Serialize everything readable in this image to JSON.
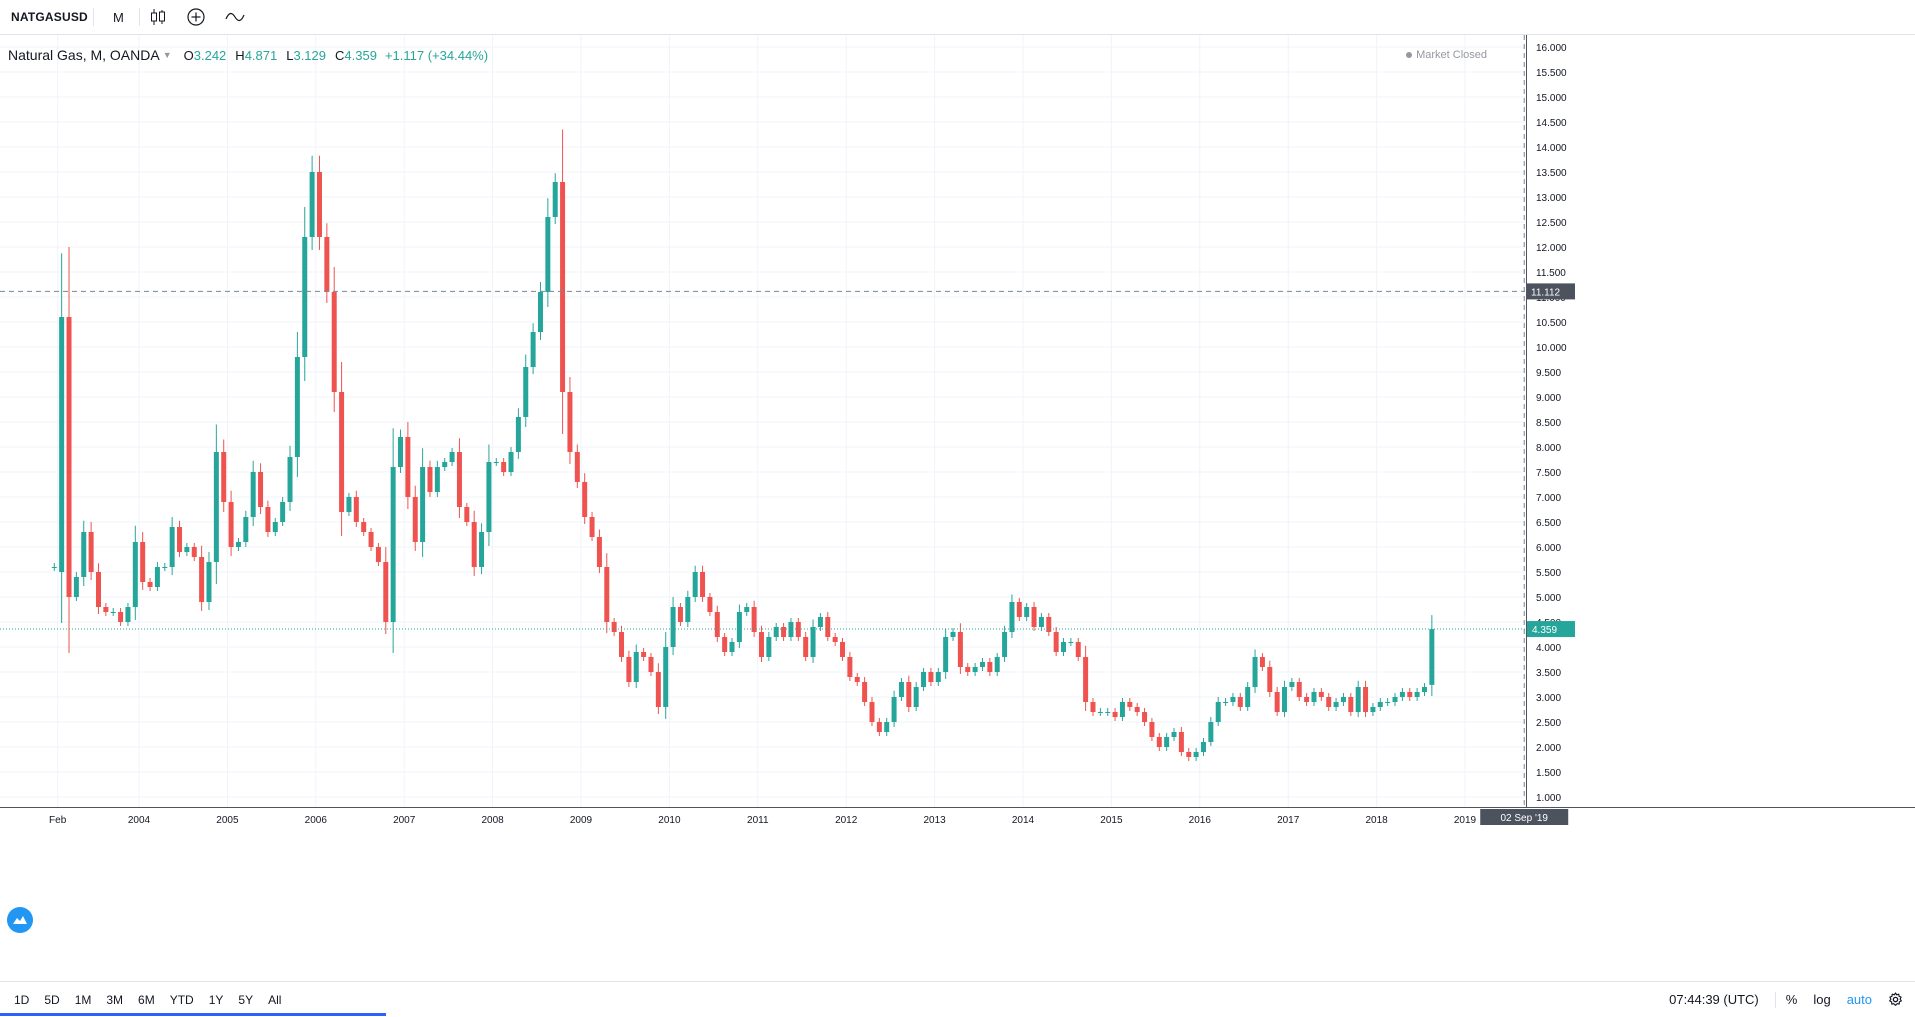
{
  "toolbar": {
    "symbol": "NATGASUSD",
    "interval": "M",
    "icons": [
      "candles-icon",
      "compare-add-icon",
      "indicators-icon"
    ]
  },
  "legend": {
    "title": "Natural Gas, M, OANDA",
    "o_label": "O",
    "o_value": "3.242",
    "h_label": "H",
    "h_value": "4.871",
    "l_label": "L",
    "l_value": "3.129",
    "c_label": "C",
    "c_value": "4.359",
    "change": "+1.117 (+34.44%)"
  },
  "market_status": "Market Closed",
  "bottom_bar": {
    "ranges": [
      "1D",
      "5D",
      "1M",
      "3M",
      "6M",
      "YTD",
      "1Y",
      "5Y",
      "All"
    ],
    "clock": "07:44:39 (UTC)",
    "percent_label": "%",
    "log_label": "log",
    "auto_label": "auto"
  },
  "colors": {
    "up": "#26a69a",
    "down": "#ef5350",
    "grid": "#f0f3fa",
    "axis_text": "#131722",
    "crosshair": "#758696"
  },
  "chart_data": {
    "type": "candlestick",
    "title": "Natural Gas, M, OANDA",
    "symbol": "NATGASUSD",
    "timeframe": "monthly",
    "ylim": [
      0.75,
      16.4
    ],
    "y_ticks": [
      "1.000",
      "1.500",
      "2.000",
      "2.500",
      "3.000",
      "3.500",
      "4.000",
      "4.500",
      "5.000",
      "5.500",
      "6.000",
      "6.500",
      "7.000",
      "7.500",
      "8.000",
      "8.500",
      "9.000",
      "9.500",
      "10.000",
      "10.500",
      "11.000",
      "11.500",
      "12.000",
      "12.500",
      "13.000",
      "13.500",
      "14.000",
      "14.500",
      "15.000",
      "15.500",
      "16.000"
    ],
    "x_labels": [
      "Feb",
      "2004",
      "2005",
      "2006",
      "2007",
      "2008",
      "2009",
      "2010",
      "2011",
      "2012",
      "2013",
      "2014",
      "2015",
      "2016",
      "2017",
      "2018",
      "2019"
    ],
    "x_label_start": 2003.08,
    "start": 2003.0,
    "last_price": "4.359",
    "crosshair_price": "11.112",
    "crosshair_date": "02 Sep '19",
    "crosshair_price_value": 11.112,
    "crosshair_time": 2019.67,
    "closes": [
      5.6,
      10.6,
      5.0,
      5.4,
      6.3,
      5.5,
      4.8,
      4.7,
      4.7,
      4.5,
      4.8,
      6.1,
      5.3,
      5.2,
      5.6,
      5.6,
      6.4,
      5.9,
      6.0,
      5.8,
      4.9,
      5.7,
      7.9,
      6.9,
      6.0,
      6.1,
      6.6,
      7.5,
      6.8,
      6.3,
      6.5,
      6.9,
      7.8,
      9.8,
      12.2,
      13.5,
      12.2,
      11.1,
      9.1,
      6.7,
      7.0,
      6.5,
      6.3,
      6.0,
      5.7,
      4.5,
      7.6,
      8.2,
      7.0,
      6.1,
      7.6,
      7.1,
      7.6,
      7.7,
      7.9,
      6.8,
      6.5,
      5.6,
      6.3,
      7.7,
      7.7,
      7.5,
      7.9,
      8.6,
      9.6,
      10.3,
      11.1,
      12.6,
      13.3,
      9.1,
      7.9,
      7.3,
      6.6,
      6.2,
      5.6,
      4.5,
      4.3,
      3.8,
      3.3,
      3.9,
      3.8,
      3.5,
      2.8,
      4.0,
      4.8,
      4.5,
      5.0,
      5.5,
      5.0,
      4.7,
      4.2,
      3.9,
      4.1,
      4.7,
      4.8,
      4.3,
      3.8,
      4.2,
      4.4,
      4.2,
      4.5,
      4.2,
      3.8,
      4.4,
      4.6,
      4.2,
      4.1,
      3.8,
      3.4,
      3.3,
      2.9,
      2.5,
      2.3,
      2.5,
      3.0,
      3.3,
      2.8,
      3.2,
      3.5,
      3.3,
      3.5,
      4.2,
      4.3,
      3.6,
      3.5,
      3.6,
      3.7,
      3.5,
      3.8,
      4.3,
      4.9,
      4.6,
      4.8,
      4.4,
      4.6,
      4.3,
      3.9,
      4.1,
      4.1,
      3.8,
      2.9,
      2.7,
      2.7,
      2.7,
      2.6,
      2.9,
      2.8,
      2.7,
      2.5,
      2.2,
      2.0,
      2.2,
      2.3,
      1.9,
      1.8,
      1.9,
      2.1,
      2.5,
      2.9,
      2.9,
      3.0,
      2.8,
      3.2,
      3.8,
      3.6,
      3.1,
      2.7,
      3.2,
      3.3,
      3.0,
      2.9,
      3.1,
      3.0,
      2.8,
      2.9,
      3.0,
      2.7,
      3.2,
      2.7,
      2.8,
      2.9,
      2.9,
      3.0,
      3.1,
      3.0,
      3.1,
      3.2,
      4.359
    ],
    "opens": [
      5.6,
      5.5,
      10.6,
      5.0,
      5.4,
      6.3,
      5.5,
      4.8,
      4.7,
      4.7,
      4.5,
      4.8,
      6.1,
      5.3,
      5.2,
      5.6,
      5.6,
      6.4,
      5.9,
      6.0,
      5.8,
      4.9,
      5.7,
      7.9,
      6.9,
      6.0,
      6.1,
      6.6,
      7.5,
      6.8,
      6.3,
      6.5,
      6.9,
      7.8,
      9.8,
      12.2,
      13.5,
      12.2,
      11.1,
      9.1,
      6.7,
      7.0,
      6.5,
      6.3,
      6.0,
      5.7,
      4.5,
      7.6,
      8.2,
      7.0,
      6.1,
      7.6,
      7.1,
      7.6,
      7.7,
      7.9,
      6.8,
      6.5,
      5.6,
      6.3,
      7.7,
      7.7,
      7.5,
      7.9,
      8.6,
      9.6,
      10.3,
      11.1,
      12.6,
      13.3,
      9.1,
      7.9,
      7.3,
      6.6,
      6.2,
      5.6,
      4.5,
      4.3,
      3.8,
      3.3,
      3.9,
      3.8,
      3.5,
      2.8,
      4.0,
      4.8,
      4.5,
      5.0,
      5.5,
      5.0,
      4.7,
      4.2,
      3.9,
      4.1,
      4.7,
      4.8,
      4.3,
      3.8,
      4.2,
      4.4,
      4.2,
      4.5,
      4.2,
      3.8,
      4.4,
      4.6,
      4.2,
      4.1,
      3.8,
      3.4,
      3.3,
      2.9,
      2.5,
      2.3,
      2.5,
      3.0,
      3.3,
      2.8,
      3.2,
      3.5,
      3.3,
      3.5,
      4.2,
      4.3,
      3.6,
      3.5,
      3.6,
      3.7,
      3.5,
      3.8,
      4.3,
      4.9,
      4.6,
      4.8,
      4.4,
      4.6,
      4.3,
      3.9,
      4.1,
      4.1,
      3.8,
      2.9,
      2.7,
      2.7,
      2.7,
      2.6,
      2.9,
      2.8,
      2.7,
      2.5,
      2.2,
      2.0,
      2.2,
      2.3,
      1.9,
      1.8,
      1.9,
      2.1,
      2.5,
      2.9,
      2.9,
      3.0,
      2.8,
      3.2,
      3.8,
      3.6,
      3.1,
      2.7,
      3.2,
      3.3,
      3.0,
      2.9,
      3.1,
      3.0,
      2.8,
      2.9,
      3.0,
      2.7,
      3.2,
      2.7,
      2.8,
      2.9,
      2.9,
      3.0,
      3.1,
      3.0,
      3.1,
      3.242
    ]
  }
}
